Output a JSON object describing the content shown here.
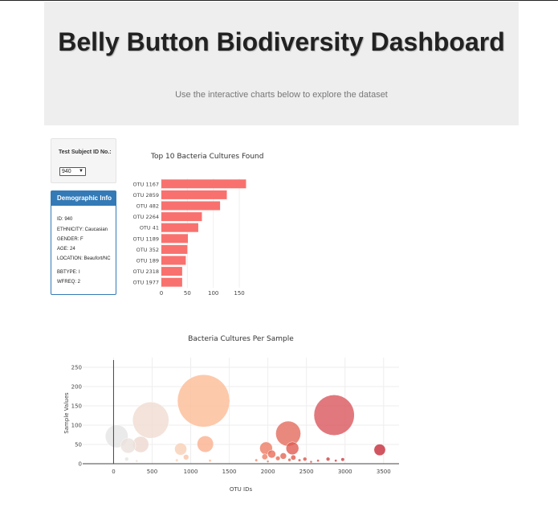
{
  "header": {
    "title": "Belly Button Biodiversity Dashboard",
    "subtitle": "Use the interactive charts below to explore the dataset"
  },
  "selector": {
    "label": "Test Subject ID No.:",
    "selected": "940"
  },
  "demographics": {
    "heading": "Demographic Info",
    "rows": [
      "ID: 940",
      "ETHNICITY: Caucasian",
      "GENDER: F",
      "AGE: 24",
      "LOCATION: Beaufort/NC",
      "BBTYPE: I",
      "WFREQ: 2"
    ]
  },
  "colors": {
    "bar": "#f8716e",
    "panel_primary": "#337ab7"
  },
  "chart_data": [
    {
      "type": "bar",
      "orientation": "horizontal",
      "title": "Top 10 Bacteria Cultures Found",
      "categories": [
        "OTU 1167",
        "OTU 2859",
        "OTU 482",
        "OTU 2264",
        "OTU 41",
        "OTU 1189",
        "OTU 352",
        "OTU 189",
        "OTU 2318",
        "OTU 1977"
      ],
      "values": [
        163,
        126,
        113,
        78,
        71,
        51,
        50,
        47,
        40,
        40
      ],
      "xlim": [
        0,
        170
      ],
      "xticks": [
        0,
        50,
        100,
        150
      ]
    },
    {
      "type": "scatter",
      "title": "Bacteria Cultures Per Sample",
      "xlabel": "OTU IDs",
      "ylabel": "Sample Values",
      "xlim": [
        -400,
        3700
      ],
      "ylim": [
        0,
        275
      ],
      "xticks": [
        0,
        500,
        1000,
        1500,
        2000,
        2500,
        3000,
        3500
      ],
      "yticks": [
        0,
        50,
        100,
        150,
        200,
        250
      ],
      "points": [
        {
          "x": 1167,
          "y": 163,
          "r": 163,
          "color": "#fcbb96"
        },
        {
          "x": 2859,
          "y": 126,
          "r": 126,
          "color": "#d9565d"
        },
        {
          "x": 482,
          "y": 113,
          "r": 113,
          "color": "#f0dcd2"
        },
        {
          "x": 2264,
          "y": 78,
          "r": 78,
          "color": "#e46c5d"
        },
        {
          "x": 41,
          "y": 71,
          "r": 71,
          "color": "#e5e5e5"
        },
        {
          "x": 1189,
          "y": 51,
          "r": 51,
          "color": "#fbb08e"
        },
        {
          "x": 352,
          "y": 50,
          "r": 50,
          "color": "#eed8cf"
        },
        {
          "x": 189,
          "y": 47,
          "r": 47,
          "color": "#ebe1dc"
        },
        {
          "x": 2318,
          "y": 40,
          "r": 40,
          "color": "#e05b51"
        },
        {
          "x": 1977,
          "y": 40,
          "r": 40,
          "color": "#ec7c63"
        },
        {
          "x": 3450,
          "y": 36,
          "r": 36,
          "color": "#c52a38"
        },
        {
          "x": 870,
          "y": 38,
          "r": 38,
          "color": "#f9cfb5"
        },
        {
          "x": 2050,
          "y": 25,
          "r": 25,
          "color": "#ea6e5a"
        },
        {
          "x": 2200,
          "y": 20,
          "r": 20,
          "color": "#e46652"
        },
        {
          "x": 2330,
          "y": 16,
          "r": 16,
          "color": "#df5c4d"
        },
        {
          "x": 1960,
          "y": 18,
          "r": 18,
          "color": "#ee8066"
        },
        {
          "x": 2130,
          "y": 14,
          "r": 14,
          "color": "#e86b55"
        },
        {
          "x": 2480,
          "y": 12,
          "r": 12,
          "color": "#db544a"
        },
        {
          "x": 2280,
          "y": 10,
          "r": 10,
          "color": "#e0604f"
        },
        {
          "x": 2410,
          "y": 9,
          "r": 9,
          "color": "#dc584b"
        },
        {
          "x": 2650,
          "y": 8,
          "r": 8,
          "color": "#d44a45"
        },
        {
          "x": 1850,
          "y": 9,
          "r": 9,
          "color": "#f09072"
        },
        {
          "x": 2780,
          "y": 12,
          "r": 12,
          "color": "#cf4042"
        },
        {
          "x": 2970,
          "y": 11,
          "r": 11,
          "color": "#cb3a40"
        },
        {
          "x": 2880,
          "y": 8,
          "r": 8,
          "color": "#cd3d41"
        },
        {
          "x": 940,
          "y": 17,
          "r": 17,
          "color": "#f9c4a6"
        },
        {
          "x": 820,
          "y": 9,
          "r": 9,
          "color": "#fad3bd"
        },
        {
          "x": 1250,
          "y": 8,
          "r": 8,
          "color": "#fbb791"
        },
        {
          "x": 170,
          "y": 12,
          "r": 12,
          "color": "#e8e3e0"
        },
        {
          "x": 300,
          "y": 7,
          "r": 7,
          "color": "#ede0d9"
        },
        {
          "x": 2000,
          "y": 6,
          "r": 6,
          "color": "#ec7a61"
        },
        {
          "x": 2560,
          "y": 5,
          "r": 5,
          "color": "#d85048"
        }
      ]
    }
  ]
}
